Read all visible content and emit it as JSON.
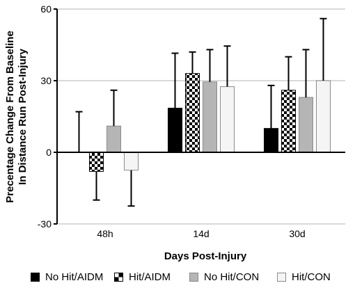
{
  "chart_data": {
    "type": "bar",
    "categories": [
      "48h",
      "14d",
      "30d"
    ],
    "xlabel": "Days Post-Injury",
    "ylabel": [
      "Precentage Change From Baseline",
      "In Distance Run Post-Injury"
    ],
    "ylim": [
      -30,
      60
    ],
    "yticks": [
      "60",
      "30",
      "0",
      "-30"
    ],
    "grid": true,
    "legend": "bottom",
    "series": [
      {
        "name": "No Hit/AIDM",
        "values": [
          0,
          18.5,
          10
        ],
        "errors": [
          17,
          23,
          18
        ],
        "color": "#000000",
        "style": "solid"
      },
      {
        "name": "Hit/AIDM",
        "values": [
          -8,
          33,
          26
        ],
        "errors": [
          12,
          9,
          14
        ],
        "color": "#000000",
        "style": "checker"
      },
      {
        "name": "No Hit/CON",
        "values": [
          11,
          29.5,
          23
        ],
        "errors": [
          15,
          13.5,
          20
        ],
        "color": "#b5b5b5",
        "style": "solid"
      },
      {
        "name": "Hit/CON",
        "values": [
          -7.5,
          27.5,
          30
        ],
        "errors": [
          15,
          17,
          26
        ],
        "color": "#f5f5f5",
        "style": "solid"
      }
    ]
  }
}
